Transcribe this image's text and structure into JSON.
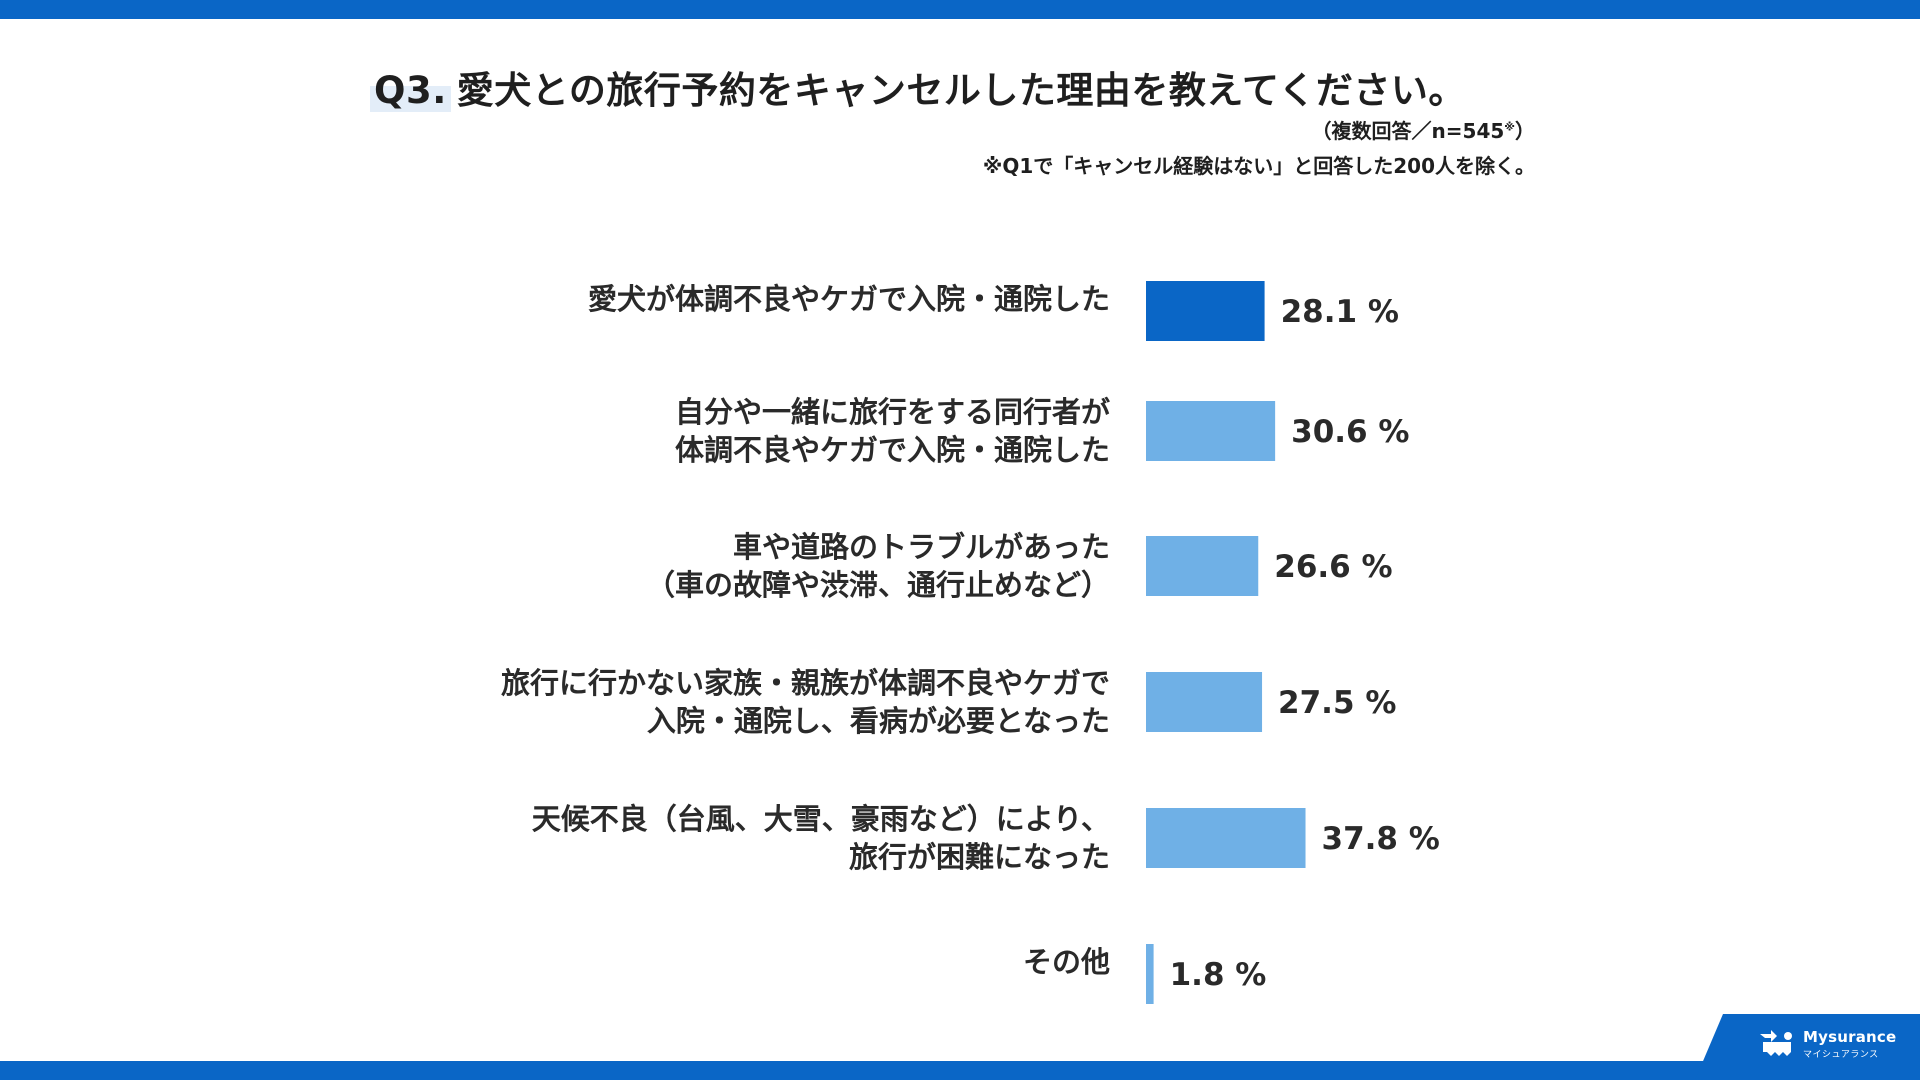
{
  "header": {
    "title_q": "Q3.",
    "title_text": "愛犬との旅行予約をキャンセルした理由を教えてください。",
    "note_responses": "（複数回答／n=545",
    "note_mark": "※",
    "note_close": "）",
    "note_exclusion": "※Q1で「キャンセル経験はない」と回答した200人を除く。"
  },
  "brand": {
    "name_en": "Mysurance",
    "name_ja": "マイシュアランス",
    "logo_icon": "mysurance-logo-icon",
    "color": "#0a66c6"
  },
  "chart_data": {
    "type": "bar",
    "orientation": "horizontal",
    "unit": "%",
    "categories": [
      [
        "愛犬が体調不良やケガで入院・通院した"
      ],
      [
        "自分や一緒に旅行をする同行者が",
        "体調不良やケガで入院・通院した"
      ],
      [
        "車や道路のトラブルがあった",
        "（車の故障や渋滞、通行止めなど）"
      ],
      [
        "旅行に行かない家族・親族が体調不良やケガで",
        "入院・通院し、看病が必要となった"
      ],
      [
        "天候不良（台風、大雪、豪雨など）により、",
        "旅行が困難になった"
      ],
      [
        "その他"
      ]
    ],
    "values": [
      28.1,
      30.6,
      26.6,
      27.5,
      37.8,
      1.8
    ],
    "value_labels": [
      "28.1 %",
      "30.6 %",
      "26.6 %",
      "27.5 %",
      "37.8 %",
      "1.8 %"
    ],
    "highlight_index": 0,
    "colors": {
      "highlight": "#0a66c6",
      "default": "#6fb0e6"
    },
    "grid": false,
    "legend": "none"
  }
}
